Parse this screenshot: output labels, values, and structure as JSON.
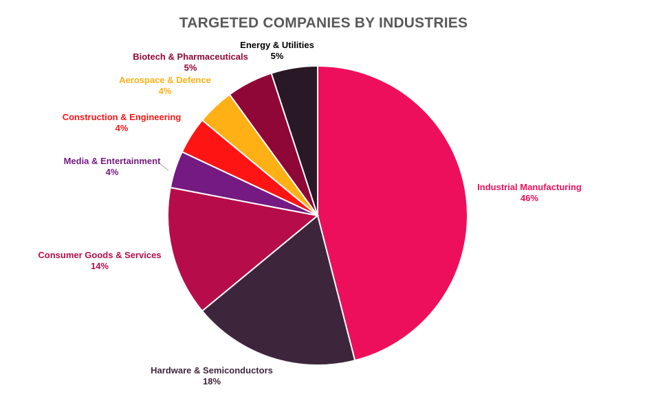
{
  "chart_data": {
    "type": "pie",
    "title": "TARGETED COMPANIES BY INDUSTRIES",
    "slices": [
      {
        "label": "Industrial Manufacturing",
        "value": 46,
        "display": "46%",
        "color": "#EE0F5C"
      },
      {
        "label": "Hardware & Semiconductors",
        "value": 18,
        "display": "18%",
        "color": "#3D263B"
      },
      {
        "label": "Consumer Goods & Services",
        "value": 14,
        "display": "14%",
        "color": "#B60D4A"
      },
      {
        "label": "Media & Entertainment",
        "value": 4,
        "display": "4%",
        "color": "#751A82"
      },
      {
        "label": "Construction & Engineering",
        "value": 4,
        "display": "4%",
        "color": "#FF1414"
      },
      {
        "label": "Aerospace & Defence",
        "value": 4,
        "display": "4%",
        "color": "#FFB014"
      },
      {
        "label": "Biotech & Pharmaceuticals",
        "value": 5,
        "display": "5%",
        "color": "#8F0736"
      },
      {
        "label": "Energy & Utilities",
        "value": 5,
        "display": "5%",
        "color": "#291926"
      }
    ],
    "label_colors": [
      "#EE0F5C",
      "#3D263B",
      "#B60D4A",
      "#751A82",
      "#FF1414",
      "#FFB014",
      "#8F0736",
      "#000000"
    ]
  }
}
